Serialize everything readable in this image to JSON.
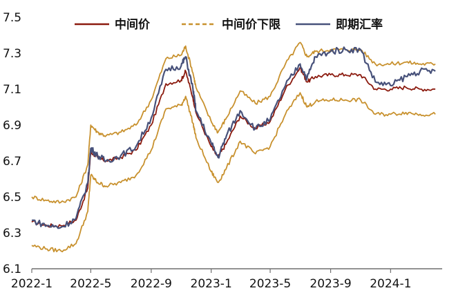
{
  "chart_data": {
    "type": "line",
    "xlabel": "",
    "ylabel": "",
    "x_ticks": [
      "2022-1",
      "2022-5",
      "2022-9",
      "2023-1",
      "2023-5",
      "2023-9",
      "2024-1"
    ],
    "y_ticks": [
      "6.1",
      "6.3",
      "6.5",
      "6.7",
      "6.9",
      "7.1",
      "7.3",
      "7.5"
    ],
    "ylim": [
      6.1,
      7.5
    ],
    "x_range": [
      "2022-01",
      "2024-04"
    ],
    "grid": false,
    "legend_position": "top",
    "series": [
      {
        "name": "中间价",
        "color": "#8b1a0e",
        "style": "solid",
        "points": [
          [
            "2022-01",
            6.36
          ],
          [
            "2022-02",
            6.34
          ],
          [
            "2022-03",
            6.34
          ],
          [
            "2022-04",
            6.37
          ],
          [
            "2022-04-25",
            6.55
          ],
          [
            "2022-05",
            6.75
          ],
          [
            "2022-05-15",
            6.72
          ],
          [
            "2022-06",
            6.7
          ],
          [
            "2022-07",
            6.72
          ],
          [
            "2022-08",
            6.76
          ],
          [
            "2022-09",
            6.9
          ],
          [
            "2022-10",
            7.13
          ],
          [
            "2022-11",
            7.15
          ],
          [
            "2022-11-10",
            7.2
          ],
          [
            "2022-11-25",
            7.05
          ],
          [
            "2022-12",
            6.97
          ],
          [
            "2023-01",
            6.78
          ],
          [
            "2023-01-15",
            6.72
          ],
          [
            "2023-02",
            6.8
          ],
          [
            "2023-03",
            6.95
          ],
          [
            "2023-04",
            6.88
          ],
          [
            "2023-05",
            6.92
          ],
          [
            "2023-06",
            7.1
          ],
          [
            "2023-07",
            7.22
          ],
          [
            "2023-07-15",
            7.14
          ],
          [
            "2023-08",
            7.17
          ],
          [
            "2023-09",
            7.18
          ],
          [
            "2023-10",
            7.18
          ],
          [
            "2023-11",
            7.18
          ],
          [
            "2023-12",
            7.1
          ],
          [
            "2024-01",
            7.1
          ],
          [
            "2024-02",
            7.11
          ],
          [
            "2024-03",
            7.1
          ],
          [
            "2024-04",
            7.1
          ]
        ]
      },
      {
        "name": "中间价下限",
        "color": "#c8912e",
        "style": "dashed",
        "points": [
          [
            "2022-01",
            6.5
          ],
          [
            "2022-02",
            6.48
          ],
          [
            "2022-03",
            6.47
          ],
          [
            "2022-04",
            6.5
          ],
          [
            "2022-04-25",
            6.68
          ],
          [
            "2022-05",
            6.9
          ],
          [
            "2022-05-15",
            6.86
          ],
          [
            "2022-06",
            6.84
          ],
          [
            "2022-07",
            6.86
          ],
          [
            "2022-08",
            6.9
          ],
          [
            "2022-09",
            7.04
          ],
          [
            "2022-10",
            7.27
          ],
          [
            "2022-11",
            7.29
          ],
          [
            "2022-11-10",
            7.34
          ],
          [
            "2022-11-25",
            7.19
          ],
          [
            "2022-12",
            7.11
          ],
          [
            "2023-01",
            6.92
          ],
          [
            "2023-01-15",
            6.86
          ],
          [
            "2023-02",
            6.94
          ],
          [
            "2023-03",
            7.09
          ],
          [
            "2023-04",
            7.02
          ],
          [
            "2023-05",
            7.06
          ],
          [
            "2023-06",
            7.24
          ],
          [
            "2023-07",
            7.36
          ],
          [
            "2023-07-15",
            7.28
          ],
          [
            "2023-08",
            7.31
          ],
          [
            "2023-09",
            7.32
          ],
          [
            "2023-10",
            7.32
          ],
          [
            "2023-11",
            7.32
          ],
          [
            "2023-12",
            7.24
          ],
          [
            "2024-01",
            7.24
          ],
          [
            "2024-02",
            7.25
          ],
          [
            "2024-03",
            7.24
          ],
          [
            "2024-04",
            7.24
          ]
        ]
      },
      {
        "name": "中间价下限",
        "color": "#c8912e",
        "style": "solid",
        "points": [
          [
            "2022-01",
            6.23
          ],
          [
            "2022-02",
            6.21
          ],
          [
            "2022-03",
            6.2
          ],
          [
            "2022-04",
            6.24
          ],
          [
            "2022-04-25",
            6.42
          ],
          [
            "2022-05",
            6.62
          ],
          [
            "2022-05-15",
            6.58
          ],
          [
            "2022-06",
            6.56
          ],
          [
            "2022-07",
            6.58
          ],
          [
            "2022-08",
            6.62
          ],
          [
            "2022-09",
            6.76
          ],
          [
            "2022-10",
            6.99
          ],
          [
            "2022-11",
            7.01
          ],
          [
            "2022-11-10",
            7.06
          ],
          [
            "2022-11-25",
            6.91
          ],
          [
            "2022-12",
            6.83
          ],
          [
            "2023-01",
            6.64
          ],
          [
            "2023-01-15",
            6.58
          ],
          [
            "2023-02",
            6.66
          ],
          [
            "2023-03",
            6.81
          ],
          [
            "2023-04",
            6.74
          ],
          [
            "2023-05",
            6.78
          ],
          [
            "2023-06",
            6.96
          ],
          [
            "2023-07",
            7.08
          ],
          [
            "2023-07-15",
            7.0
          ],
          [
            "2023-08",
            7.03
          ],
          [
            "2023-09",
            7.04
          ],
          [
            "2023-10",
            7.04
          ],
          [
            "2023-11",
            7.04
          ],
          [
            "2023-12",
            6.96
          ],
          [
            "2024-01",
            6.96
          ],
          [
            "2024-02",
            6.97
          ],
          [
            "2024-03",
            6.96
          ],
          [
            "2024-04",
            6.96
          ]
        ]
      },
      {
        "name": "即期汇率",
        "color": "#47517a",
        "style": "solid",
        "points": [
          [
            "2022-01",
            6.37
          ],
          [
            "2022-02",
            6.34
          ],
          [
            "2022-03",
            6.33
          ],
          [
            "2022-04",
            6.38
          ],
          [
            "2022-04-25",
            6.58
          ],
          [
            "2022-05",
            6.77
          ],
          [
            "2022-05-15",
            6.73
          ],
          [
            "2022-06",
            6.7
          ],
          [
            "2022-07",
            6.73
          ],
          [
            "2022-08",
            6.78
          ],
          [
            "2022-09",
            6.94
          ],
          [
            "2022-10",
            7.21
          ],
          [
            "2022-11",
            7.23
          ],
          [
            "2022-11-10",
            7.28
          ],
          [
            "2022-11-25",
            7.1
          ],
          [
            "2022-12",
            6.98
          ],
          [
            "2023-01",
            6.8
          ],
          [
            "2023-01-15",
            6.72
          ],
          [
            "2023-02",
            6.84
          ],
          [
            "2023-03",
            6.98
          ],
          [
            "2023-04",
            6.88
          ],
          [
            "2023-05",
            6.93
          ],
          [
            "2023-06",
            7.12
          ],
          [
            "2023-07",
            7.24
          ],
          [
            "2023-07-15",
            7.16
          ],
          [
            "2023-08",
            7.28
          ],
          [
            "2023-09",
            7.31
          ],
          [
            "2023-10",
            7.32
          ],
          [
            "2023-11",
            7.32
          ],
          [
            "2023-12",
            7.14
          ],
          [
            "2024-01",
            7.12
          ],
          [
            "2024-02",
            7.17
          ],
          [
            "2024-03",
            7.2
          ],
          [
            "2024-04",
            7.2
          ]
        ]
      }
    ],
    "legend": [
      {
        "label": "中间价",
        "color": "#8b1a0e",
        "style": "solid"
      },
      {
        "label": "中间价下限",
        "color": "#c8912e",
        "style": "dashed"
      },
      {
        "label": "即期汇率",
        "color": "#47517a",
        "style": "solid"
      }
    ]
  }
}
